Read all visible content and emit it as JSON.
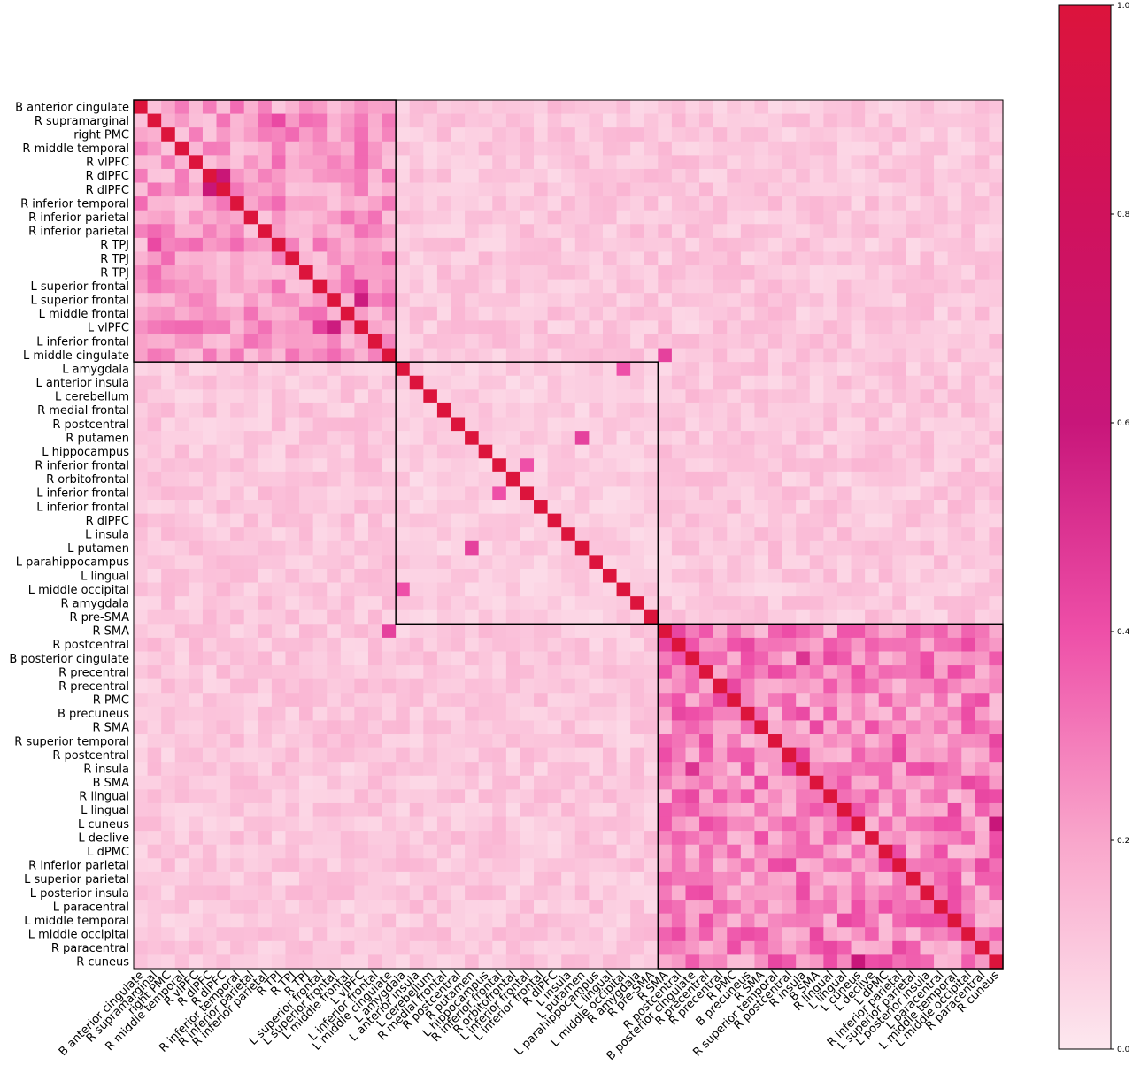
{
  "chart_data": {
    "type": "heatmap",
    "title": "",
    "xlabel": "",
    "ylabel": "",
    "labels": [
      "B anterior cingulate",
      "R supramarginal",
      "right PMC",
      "R middle temporal",
      "R vlPFC",
      "R dlPFC",
      "R dlPFC",
      "R inferior temporal",
      "R inferior parietal",
      "R inferior parietal",
      "R TPJ",
      "R TPJ",
      "R TPJ",
      "L superior frontal",
      "L superior frontal",
      "L middle frontal",
      "L vlPFC",
      "L inferior frontal",
      "L middle cingulate",
      "L amygdala",
      "L anterior insula",
      "L cerebellum",
      "R medial frontal",
      "R postcentral",
      "R putamen",
      "L hippocampus",
      "R inferior frontal",
      "R orbitofrontal",
      "L inferior frontal",
      "L inferior frontal",
      "R dlPFC",
      "L insula",
      "L putamen",
      "L parahippocampus",
      "L lingual",
      "L middle occipital",
      "R amygdala",
      "R pre-SMA",
      "R SMA",
      "R postcentral",
      "B posterior cingulate",
      "R precentral",
      "R precentral",
      "R PMC",
      "B precuneus",
      "R SMA",
      "R superior temporal",
      "R postcentral",
      "R insula",
      "B SMA",
      "R lingual",
      "L lingual",
      "L cuneus",
      "L declive",
      "L dPMC",
      "R inferior parietal",
      "L superior parietal",
      "L posterior insula",
      "L paracentral",
      "L middle temporal",
      "L middle occipital",
      "R paracentral",
      "R cuneus"
    ],
    "blocks": [
      [
        0,
        18
      ],
      [
        19,
        37
      ],
      [
        38,
        62
      ]
    ],
    "within_block_levels": [
      0.22,
      0.08,
      0.28
    ],
    "between_block_level": 0.1,
    "diagonal": 1.0,
    "highlights": [
      [
        5,
        6,
        0.62
      ],
      [
        14,
        16,
        0.58
      ],
      [
        10,
        1,
        0.42
      ],
      [
        16,
        13,
        0.45
      ],
      [
        40,
        48,
        0.5
      ],
      [
        52,
        62,
        0.6
      ],
      [
        26,
        28,
        0.4
      ],
      [
        24,
        32,
        0.45
      ],
      [
        35,
        19,
        0.4
      ],
      [
        38,
        18,
        0.45
      ]
    ],
    "colorbar": {
      "min": 0.0,
      "max": 1.0,
      "ticks": [
        "0.0",
        "0.2",
        "0.4",
        "0.6",
        "0.8",
        "1.0"
      ]
    },
    "colors": {
      "low": "#fde8ef",
      "mid_low": "#f9a6cb",
      "mid": "#ee4fa8",
      "high_mid": "#c8167a",
      "high": "#dc143c",
      "frame": "#000000"
    }
  }
}
